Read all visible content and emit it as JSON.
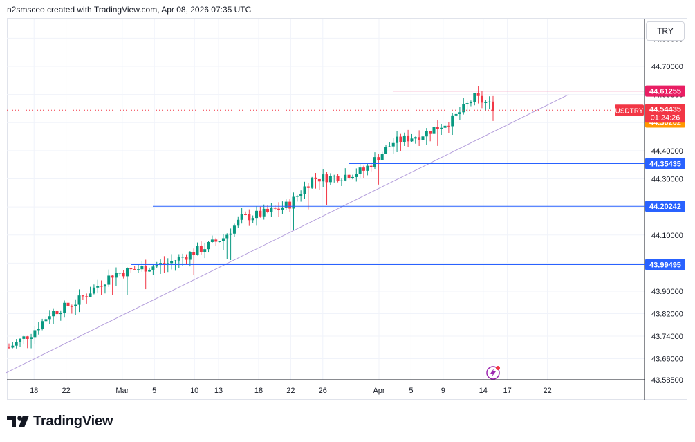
{
  "header": {
    "attribution": "n2smsceo created with TradingView.com, Apr 08, 2026 07:35 UTC"
  },
  "currency": "TRY",
  "brand": {
    "name": "TradingView",
    "logo_icon": "tradingview-logo-icon"
  },
  "indicator_icon": "lightning-alert-icon",
  "colors": {
    "up": "#089981",
    "down": "#f23645",
    "grid": "#f0f3fa",
    "trendline": "#b39ddb",
    "resistance": "#e91e63",
    "support_orange": "#ff9800",
    "support_blue": "#2962ff",
    "price_line": "#f23645"
  },
  "chart_data": {
    "type": "candlestick",
    "symbol": "USDTRY",
    "last_price": "44.54435",
    "countdown": "01:24:26",
    "ylim": [
      43.585,
      44.87
    ],
    "y_ticks": [
      "44.80000",
      "44.70000",
      "44.60000",
      "44.40000",
      "44.30000",
      "44.10000",
      "43.90000",
      "43.82000",
      "43.74000",
      "43.66000",
      "43.58500"
    ],
    "x_ticks": [
      "18",
      "22",
      "Mar",
      "5",
      "10",
      "13",
      "18",
      "22",
      "26",
      "Apr",
      "5",
      "9",
      "14",
      "17",
      "22"
    ],
    "horizontal_levels": [
      {
        "value": 44.61255,
        "label": "44.61255",
        "color": "#e91e63"
      },
      {
        "value": 44.50202,
        "label": "44.50202",
        "color": "#ff9800"
      },
      {
        "value": 44.35435,
        "label": "44.35435",
        "color": "#2962ff"
      },
      {
        "value": 44.20242,
        "label": "44.20242",
        "color": "#2962ff"
      },
      {
        "value": 43.99495,
        "label": "43.99495",
        "color": "#2962ff"
      }
    ],
    "trendline": {
      "start": {
        "x": "Feb 16",
        "y": 43.61
      },
      "end": {
        "x": "Apr 14",
        "y": 44.6
      }
    },
    "series_trend": [
      [
        0,
        43.7
      ],
      [
        6,
        43.75
      ],
      [
        11,
        43.82
      ],
      [
        18,
        43.86
      ],
      [
        24,
        43.92
      ],
      [
        28,
        43.96
      ],
      [
        35,
        43.98
      ],
      [
        43,
        44.0
      ],
      [
        52,
        44.05
      ],
      [
        58,
        44.09
      ],
      [
        63,
        44.16
      ],
      [
        70,
        44.18
      ],
      [
        76,
        44.21
      ],
      [
        82,
        44.3
      ],
      [
        90,
        44.31
      ],
      [
        96,
        44.33
      ],
      [
        104,
        44.43
      ],
      [
        112,
        44.46
      ],
      [
        120,
        44.51
      ],
      [
        126,
        44.59
      ],
      [
        132,
        44.55
      ]
    ]
  }
}
